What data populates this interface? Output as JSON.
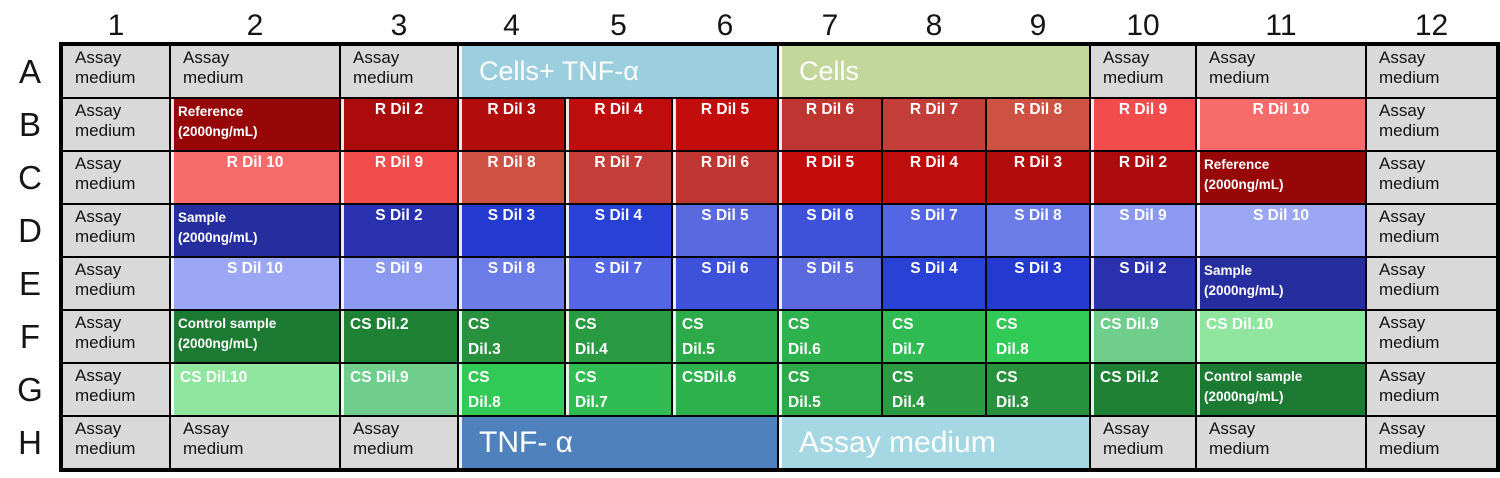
{
  "colors": {
    "grid_border": "#000000",
    "medium_bg": "#d9d9d9",
    "reference_dark_red": "#970707",
    "sample_dark_blue": "#262d9e",
    "control_dark_green": "#1d7a33",
    "cells_tnf_blue": "#9bcfdd",
    "cells_olive": "#c4d79b",
    "tnf_blue": "#4f81bd",
    "assay_medium_light_blue": "#a6d8e4"
  },
  "plate": {
    "column_headers": [
      "1",
      "2",
      "3",
      "4",
      "5",
      "6",
      "7",
      "8",
      "9",
      "10",
      "11",
      "12"
    ],
    "row_labels": [
      "A",
      "B",
      "C",
      "D",
      "E",
      "F",
      "G",
      "H"
    ],
    "rows": [
      {
        "cells": [
          {
            "t": "Assay\nmedium",
            "k": "medium"
          },
          {
            "t": "Assay\nmedium",
            "k": "medium"
          },
          {
            "t": "Assay\nmedium",
            "k": "medium"
          },
          {
            "t": "Cells+ TNF-α",
            "k": "secA",
            "bg": "#9bcfdd",
            "span": 3,
            "name": "section-cells-plus-tnf-alpha"
          },
          {
            "t": "Cells",
            "k": "secA",
            "bg": "#c4d79b",
            "span": 3,
            "name": "section-cells"
          },
          {
            "t": "Assay\nmedium",
            "k": "medium"
          },
          {
            "t": "Assay\nmedium",
            "k": "medium"
          },
          {
            "t": "Assay\nmedium",
            "k": "medium"
          }
        ]
      },
      {
        "cells": [
          {
            "t": "Assay\nmedium",
            "k": "medium"
          },
          {
            "t": "Reference\n(2000ng/mL)",
            "k": "conc",
            "bg": "#970707"
          },
          {
            "t": "R Dil 2",
            "k": "dil",
            "bg": "#ab0b0b"
          },
          {
            "t": "R Dil 3",
            "k": "dil",
            "bg": "#b20c0c"
          },
          {
            "t": "R Dil 4",
            "k": "dil",
            "bg": "#bf0c0c"
          },
          {
            "t": "R Dil 5",
            "k": "dil",
            "bg": "#c30d0d"
          },
          {
            "t": "R Dil 6",
            "k": "dil",
            "bg": "#bf3531"
          },
          {
            "t": "R Dil 7",
            "k": "dil",
            "bg": "#c43e39"
          },
          {
            "t": "R Dil 8",
            "k": "dil",
            "bg": "#cd5243"
          },
          {
            "t": "R Dil 9",
            "k": "dil",
            "bg": "#f34c4c"
          },
          {
            "t": "R Dil 10",
            "k": "dil",
            "bg": "#f76b6b"
          },
          {
            "t": "Assay\nmedium",
            "k": "medium"
          }
        ]
      },
      {
        "cells": [
          {
            "t": "Assay\nmedium",
            "k": "medium"
          },
          {
            "t": "R Dil 10",
            "k": "dil",
            "bg": "#f76b6b"
          },
          {
            "t": "R Dil 9",
            "k": "dil",
            "bg": "#f34c4c"
          },
          {
            "t": "R Dil 8",
            "k": "dil",
            "bg": "#cd5243"
          },
          {
            "t": "R Dil 7",
            "k": "dil",
            "bg": "#c43e39"
          },
          {
            "t": "R Dil 6",
            "k": "dil",
            "bg": "#bf3531"
          },
          {
            "t": "R Dil 5",
            "k": "dil",
            "bg": "#c30d0d"
          },
          {
            "t": "R Dil 4",
            "k": "dil",
            "bg": "#bf0c0c"
          },
          {
            "t": "R Dil 3",
            "k": "dil",
            "bg": "#b20c0c"
          },
          {
            "t": "R Dil 2",
            "k": "dil",
            "bg": "#ab0b0b"
          },
          {
            "t": "Reference\n(2000ng/mL)",
            "k": "conc",
            "bg": "#970707"
          },
          {
            "t": "Assay\nmedium",
            "k": "medium"
          }
        ]
      },
      {
        "cells": [
          {
            "t": "Assay\nmedium",
            "k": "medium"
          },
          {
            "t": "Sample\n(2000ng/mL)",
            "k": "conc",
            "bg": "#262d9e"
          },
          {
            "t": "S Dil 2",
            "k": "dil",
            "bg": "#2a31ae"
          },
          {
            "t": "S Dil 3",
            "k": "dil",
            "bg": "#2339d0"
          },
          {
            "t": "S Dil 4",
            "k": "dil",
            "bg": "#2a41d6"
          },
          {
            "t": "S Dil 5",
            "k": "dil",
            "bg": "#5b69de"
          },
          {
            "t": "S Dil 6",
            "k": "dil",
            "bg": "#3e51db"
          },
          {
            "t": "S Dil 7",
            "k": "dil",
            "bg": "#5466e3"
          },
          {
            "t": "S Dil 8",
            "k": "dil",
            "bg": "#6b7ce9"
          },
          {
            "t": "S Dil 9",
            "k": "dil",
            "bg": "#8b9af0"
          },
          {
            "t": "S Dil 10",
            "k": "dil",
            "bg": "#9ba7f4"
          },
          {
            "t": "Assay\nmedium",
            "k": "medium"
          }
        ]
      },
      {
        "cells": [
          {
            "t": "Assay\nmedium",
            "k": "medium"
          },
          {
            "t": "S Dil 10",
            "k": "dil",
            "bg": "#9ba7f4"
          },
          {
            "t": "S Dil 9",
            "k": "dil",
            "bg": "#8b9af0"
          },
          {
            "t": "S Dil 8",
            "k": "dil",
            "bg": "#6b7ce9"
          },
          {
            "t": "S Dil 7",
            "k": "dil",
            "bg": "#5466e3"
          },
          {
            "t": "S Dil 6",
            "k": "dil",
            "bg": "#3e51db"
          },
          {
            "t": "S Dil 5",
            "k": "dil",
            "bg": "#5b69de"
          },
          {
            "t": "S Dil 4",
            "k": "dil",
            "bg": "#2a41d6"
          },
          {
            "t": "S Dil 3",
            "k": "dil",
            "bg": "#2339d0"
          },
          {
            "t": "S Dil 2",
            "k": "dil",
            "bg": "#2a31ae"
          },
          {
            "t": "Sample\n(2000ng/mL)",
            "k": "conc",
            "bg": "#262d9e"
          },
          {
            "t": "Assay\nmedium",
            "k": "medium"
          }
        ]
      },
      {
        "cells": [
          {
            "t": "Assay\nmedium",
            "k": "medium"
          },
          {
            "t": "Control sample\n(2000ng/mL)",
            "k": "conc",
            "bg": "#1d7a33"
          },
          {
            "t": "CS Dil.2",
            "k": "dil-left",
            "bg": "#1f8133"
          },
          {
            "t": "CS\nDil.3",
            "k": "dil-left",
            "bg": "#27913d"
          },
          {
            "t": "CS\nDil.4",
            "k": "dil-left",
            "bg": "#2a9b42"
          },
          {
            "t": "CS\nDil.5",
            "k": "dil-left",
            "bg": "#2dab4a"
          },
          {
            "t": "CS\nDil.6",
            "k": "dil-left",
            "bg": "#2eb24e"
          },
          {
            "t": "CS\nDil.7",
            "k": "dil-left",
            "bg": "#30bc52"
          },
          {
            "t": "CS\nDil.8",
            "k": "dil-left",
            "bg": "#31ca56"
          },
          {
            "t": "CS Dil.9",
            "k": "dil-left",
            "bg": "#6fce8c"
          },
          {
            "t": "CS Dil.10",
            "k": "dil-left",
            "bg": "#90e69e"
          },
          {
            "t": "Assay\nmedium",
            "k": "medium"
          }
        ]
      },
      {
        "cells": [
          {
            "t": "Assay\nmedium",
            "k": "medium"
          },
          {
            "t": "CS Dil.10",
            "k": "dil-left",
            "bg": "#90e69e"
          },
          {
            "t": "CS Dil.9",
            "k": "dil-left",
            "bg": "#6fce8c"
          },
          {
            "t": "CS\nDil.8",
            "k": "dil-left",
            "bg": "#31ca56"
          },
          {
            "t": "CS\nDil.7",
            "k": "dil-left",
            "bg": "#30bc52"
          },
          {
            "t": "CSDil.6",
            "k": "dil-left",
            "bg": "#2eb24e"
          },
          {
            "t": "CS\nDil.5",
            "k": "dil-left",
            "bg": "#2dab4a"
          },
          {
            "t": "CS\nDil.4",
            "k": "dil-left",
            "bg": "#2a9b42"
          },
          {
            "t": "CS\nDil.3",
            "k": "dil-left",
            "bg": "#27913d"
          },
          {
            "t": "CS Dil.2",
            "k": "dil-left",
            "bg": "#1f8133"
          },
          {
            "t": "Control sample\n(2000ng/mL)",
            "k": "conc",
            "bg": "#1d7a33"
          },
          {
            "t": "Assay\nmedium",
            "k": "medium"
          }
        ]
      },
      {
        "cells": [
          {
            "t": "Assay\nmedium",
            "k": "medium"
          },
          {
            "t": "Assay\nmedium",
            "k": "medium"
          },
          {
            "t": "Assay\nmedium",
            "k": "medium"
          },
          {
            "t": "TNF- α",
            "k": "secH",
            "bg": "#4f81bd",
            "span": 3,
            "name": "section-tnf-alpha"
          },
          {
            "t": "Assay medium",
            "k": "secH",
            "bg": "#a6d8e4",
            "span": 3,
            "name": "section-assay-medium"
          },
          {
            "t": "Assay\nmedium",
            "k": "medium"
          },
          {
            "t": "Assay\nmedium",
            "k": "medium"
          },
          {
            "t": "Assay\nmedium",
            "k": "medium"
          }
        ]
      }
    ]
  }
}
